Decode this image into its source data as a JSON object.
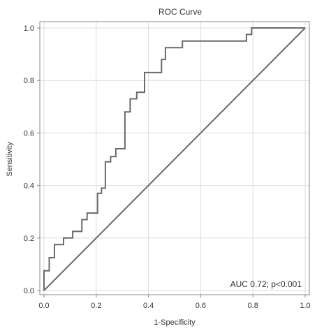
{
  "chart_data": {
    "type": "line",
    "title": "ROC Curve",
    "xlabel": "1-Specificity",
    "ylabel": "Sensitivity",
    "xlim": [
      0,
      1
    ],
    "ylim": [
      0,
      1
    ],
    "grid": true,
    "x_ticks": [
      0.0,
      0.2,
      0.4,
      0.6,
      0.8,
      1.0
    ],
    "y_ticks": [
      0.0,
      0.2,
      0.4,
      0.6,
      0.8,
      1.0
    ],
    "x_tick_labels": [
      "0.0",
      "0.2",
      "0.4",
      "0.6",
      "0.8",
      "1.0"
    ],
    "y_tick_labels": [
      "0.0",
      "0.2",
      "0.4",
      "0.6",
      "0.8",
      "1.0"
    ],
    "annotation": "AUC 0.72; p<0.001",
    "colors": {
      "curve": "#6a6a6a",
      "reference": "#6a6a6a",
      "grid": "#dcdcdc",
      "frame": "#888888"
    },
    "series": [
      {
        "x": [
          0.0,
          0.0,
          0.02,
          0.02,
          0.04,
          0.04,
          0.075,
          0.075,
          0.11,
          0.11,
          0.145,
          0.145,
          0.165,
          0.165,
          0.205,
          0.205,
          0.22,
          0.22,
          0.235,
          0.235,
          0.255,
          0.255,
          0.275,
          0.275,
          0.31,
          0.31,
          0.33,
          0.33,
          0.355,
          0.355,
          0.385,
          0.385,
          0.45,
          0.45,
          0.465,
          0.465,
          0.53,
          0.53,
          0.775,
          0.775,
          0.795,
          0.795,
          1.0
        ],
        "y": [
          0.0,
          0.075,
          0.075,
          0.125,
          0.125,
          0.175,
          0.175,
          0.2,
          0.2,
          0.225,
          0.225,
          0.27,
          0.27,
          0.295,
          0.295,
          0.37,
          0.37,
          0.39,
          0.39,
          0.49,
          0.49,
          0.51,
          0.51,
          0.54,
          0.54,
          0.68,
          0.68,
          0.73,
          0.73,
          0.755,
          0.755,
          0.83,
          0.83,
          0.88,
          0.88,
          0.925,
          0.925,
          0.95,
          0.95,
          0.975,
          0.975,
          1.0,
          1.0
        ]
      },
      {
        "x": [
          0,
          1
        ],
        "y": [
          0,
          1
        ]
      }
    ]
  }
}
